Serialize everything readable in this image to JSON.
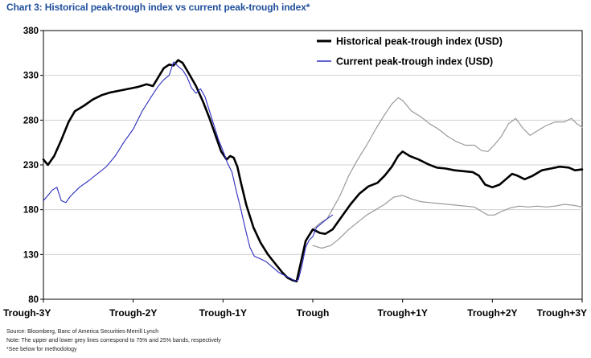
{
  "title": "Chart 3: Historical peak-trough index vs current peak-trough index*",
  "footnotes": [
    "Source: Bloomberg, Banc of America Securities-Merrill Lynch",
    "Note: The upper and lower grey lines correspond to 75% and 25% bands, respectively",
    "*See below for methodology"
  ],
  "colors": {
    "title": "#1f4e9c",
    "historical": "#000000",
    "current": "#2b2bbf",
    "bands": "#9a9a9a"
  },
  "chart_data": {
    "type": "line",
    "title": "Chart 3: Historical peak-trough index vs current peak-trough index*",
    "xlabel": "",
    "ylabel": "",
    "x_ticks": [
      {
        "x": -3,
        "label": "Trough-3Y"
      },
      {
        "x": -2,
        "label": "Trough-2Y"
      },
      {
        "x": -1,
        "label": "Trough-1Y"
      },
      {
        "x": 0,
        "label": "Trough"
      },
      {
        "x": 1,
        "label": "Trough+1Y"
      },
      {
        "x": 2,
        "label": "Trough+2Y"
      },
      {
        "x": 3,
        "label": "Trough+3Y"
      }
    ],
    "xlim": [
      -3,
      3
    ],
    "ylim": [
      80,
      380
    ],
    "y_ticks": [
      80,
      130,
      180,
      230,
      280,
      330,
      380
    ],
    "legend_position": "top-right",
    "series": [
      {
        "name": "Historical peak-trough index (USD)",
        "role": "historical",
        "points": [
          [
            -3.0,
            236
          ],
          [
            -2.95,
            230
          ],
          [
            -2.88,
            240
          ],
          [
            -2.8,
            258
          ],
          [
            -2.72,
            278
          ],
          [
            -2.65,
            290
          ],
          [
            -2.55,
            296
          ],
          [
            -2.45,
            303
          ],
          [
            -2.35,
            308
          ],
          [
            -2.25,
            311
          ],
          [
            -2.15,
            313
          ],
          [
            -2.05,
            315
          ],
          [
            -1.95,
            317
          ],
          [
            -1.85,
            320
          ],
          [
            -1.78,
            318
          ],
          [
            -1.72,
            328
          ],
          [
            -1.66,
            338
          ],
          [
            -1.6,
            342
          ],
          [
            -1.55,
            341
          ],
          [
            -1.5,
            347
          ],
          [
            -1.45,
            344
          ],
          [
            -1.38,
            332
          ],
          [
            -1.3,
            318
          ],
          [
            -1.22,
            300
          ],
          [
            -1.15,
            282
          ],
          [
            -1.08,
            262
          ],
          [
            -1.02,
            245
          ],
          [
            -0.96,
            236
          ],
          [
            -0.92,
            240
          ],
          [
            -0.88,
            238
          ],
          [
            -0.84,
            228
          ],
          [
            -0.8,
            210
          ],
          [
            -0.74,
            185
          ],
          [
            -0.66,
            160
          ],
          [
            -0.58,
            143
          ],
          [
            -0.5,
            130
          ],
          [
            -0.42,
            120
          ],
          [
            -0.34,
            110
          ],
          [
            -0.28,
            104
          ],
          [
            -0.22,
            101
          ],
          [
            -0.18,
            100
          ],
          [
            -0.14,
            118
          ],
          [
            -0.08,
            145
          ],
          [
            0.0,
            158
          ],
          [
            0.08,
            154
          ],
          [
            0.14,
            153
          ],
          [
            0.22,
            158
          ],
          [
            0.32,
            172
          ],
          [
            0.42,
            186
          ],
          [
            0.52,
            198
          ],
          [
            0.62,
            206
          ],
          [
            0.72,
            210
          ],
          [
            0.8,
            218
          ],
          [
            0.88,
            228
          ],
          [
            0.95,
            240
          ],
          [
            1.0,
            245
          ],
          [
            1.08,
            240
          ],
          [
            1.18,
            236
          ],
          [
            1.28,
            231
          ],
          [
            1.38,
            227
          ],
          [
            1.48,
            226
          ],
          [
            1.58,
            224
          ],
          [
            1.68,
            223
          ],
          [
            1.78,
            222
          ],
          [
            1.85,
            218
          ],
          [
            1.92,
            208
          ],
          [
            2.0,
            205
          ],
          [
            2.08,
            208
          ],
          [
            2.15,
            214
          ],
          [
            2.22,
            220
          ],
          [
            2.28,
            218
          ],
          [
            2.36,
            214
          ],
          [
            2.45,
            218
          ],
          [
            2.55,
            224
          ],
          [
            2.65,
            226
          ],
          [
            2.75,
            228
          ],
          [
            2.85,
            227
          ],
          [
            2.92,
            224
          ],
          [
            3.0,
            225
          ]
        ]
      },
      {
        "name": "Current peak-trough index (USD)",
        "role": "current",
        "points": [
          [
            -3.0,
            190
          ],
          [
            -2.95,
            196
          ],
          [
            -2.9,
            202
          ],
          [
            -2.85,
            205
          ],
          [
            -2.8,
            190
          ],
          [
            -2.75,
            188
          ],
          [
            -2.7,
            195
          ],
          [
            -2.6,
            205
          ],
          [
            -2.5,
            212
          ],
          [
            -2.4,
            220
          ],
          [
            -2.3,
            228
          ],
          [
            -2.2,
            240
          ],
          [
            -2.1,
            256
          ],
          [
            -2.0,
            270
          ],
          [
            -1.9,
            290
          ],
          [
            -1.8,
            306
          ],
          [
            -1.72,
            318
          ],
          [
            -1.66,
            325
          ],
          [
            -1.6,
            330
          ],
          [
            -1.55,
            345
          ],
          [
            -1.5,
            340
          ],
          [
            -1.45,
            336
          ],
          [
            -1.4,
            328
          ],
          [
            -1.35,
            316
          ],
          [
            -1.3,
            310
          ],
          [
            -1.25,
            315
          ],
          [
            -1.2,
            306
          ],
          [
            -1.15,
            290
          ],
          [
            -1.1,
            274
          ],
          [
            -1.05,
            258
          ],
          [
            -1.0,
            246
          ],
          [
            -0.95,
            232
          ],
          [
            -0.9,
            222
          ],
          [
            -0.85,
            200
          ],
          [
            -0.8,
            180
          ],
          [
            -0.75,
            158
          ],
          [
            -0.7,
            138
          ],
          [
            -0.65,
            128
          ],
          [
            -0.58,
            125
          ],
          [
            -0.52,
            122
          ],
          [
            -0.45,
            116
          ],
          [
            -0.38,
            110
          ],
          [
            -0.3,
            106
          ],
          [
            -0.24,
            103
          ],
          [
            -0.2,
            100
          ],
          [
            -0.16,
            102
          ],
          [
            -0.12,
            118
          ],
          [
            -0.08,
            138
          ],
          [
            -0.04,
            146
          ],
          [
            0.0,
            150
          ],
          [
            0.04,
            160
          ],
          [
            0.1,
            165
          ],
          [
            0.16,
            170
          ],
          [
            0.22,
            174
          ]
        ]
      },
      {
        "name": "75% band",
        "role": "band",
        "points": [
          [
            0.0,
            158
          ],
          [
            0.08,
            165
          ],
          [
            0.16,
            170
          ],
          [
            0.3,
            195
          ],
          [
            0.4,
            218
          ],
          [
            0.5,
            236
          ],
          [
            0.6,
            252
          ],
          [
            0.7,
            270
          ],
          [
            0.8,
            286
          ],
          [
            0.88,
            298
          ],
          [
            0.95,
            305
          ],
          [
            1.0,
            302
          ],
          [
            1.1,
            290
          ],
          [
            1.2,
            284
          ],
          [
            1.3,
            276
          ],
          [
            1.4,
            270
          ],
          [
            1.5,
            262
          ],
          [
            1.6,
            256
          ],
          [
            1.7,
            252
          ],
          [
            1.8,
            252
          ],
          [
            1.88,
            246
          ],
          [
            1.95,
            245
          ],
          [
            2.02,
            252
          ],
          [
            2.1,
            262
          ],
          [
            2.18,
            276
          ],
          [
            2.26,
            282
          ],
          [
            2.34,
            271
          ],
          [
            2.42,
            263
          ],
          [
            2.5,
            268
          ],
          [
            2.6,
            274
          ],
          [
            2.7,
            278
          ],
          [
            2.8,
            278
          ],
          [
            2.88,
            282
          ],
          [
            2.94,
            276
          ],
          [
            3.0,
            272
          ]
        ]
      },
      {
        "name": "25% band",
        "role": "band",
        "points": [
          [
            0.0,
            140
          ],
          [
            0.1,
            137
          ],
          [
            0.2,
            140
          ],
          [
            0.3,
            148
          ],
          [
            0.4,
            158
          ],
          [
            0.5,
            166
          ],
          [
            0.6,
            174
          ],
          [
            0.7,
            180
          ],
          [
            0.8,
            186
          ],
          [
            0.9,
            194
          ],
          [
            1.0,
            196
          ],
          [
            1.1,
            192
          ],
          [
            1.2,
            189
          ],
          [
            1.3,
            188
          ],
          [
            1.4,
            187
          ],
          [
            1.5,
            186
          ],
          [
            1.6,
            185
          ],
          [
            1.7,
            184
          ],
          [
            1.8,
            183
          ],
          [
            1.88,
            178
          ],
          [
            1.95,
            174
          ],
          [
            2.02,
            174
          ],
          [
            2.1,
            178
          ],
          [
            2.2,
            182
          ],
          [
            2.3,
            184
          ],
          [
            2.4,
            183
          ],
          [
            2.5,
            184
          ],
          [
            2.6,
            183
          ],
          [
            2.7,
            184
          ],
          [
            2.8,
            186
          ],
          [
            2.9,
            185
          ],
          [
            3.0,
            183
          ]
        ]
      }
    ]
  }
}
